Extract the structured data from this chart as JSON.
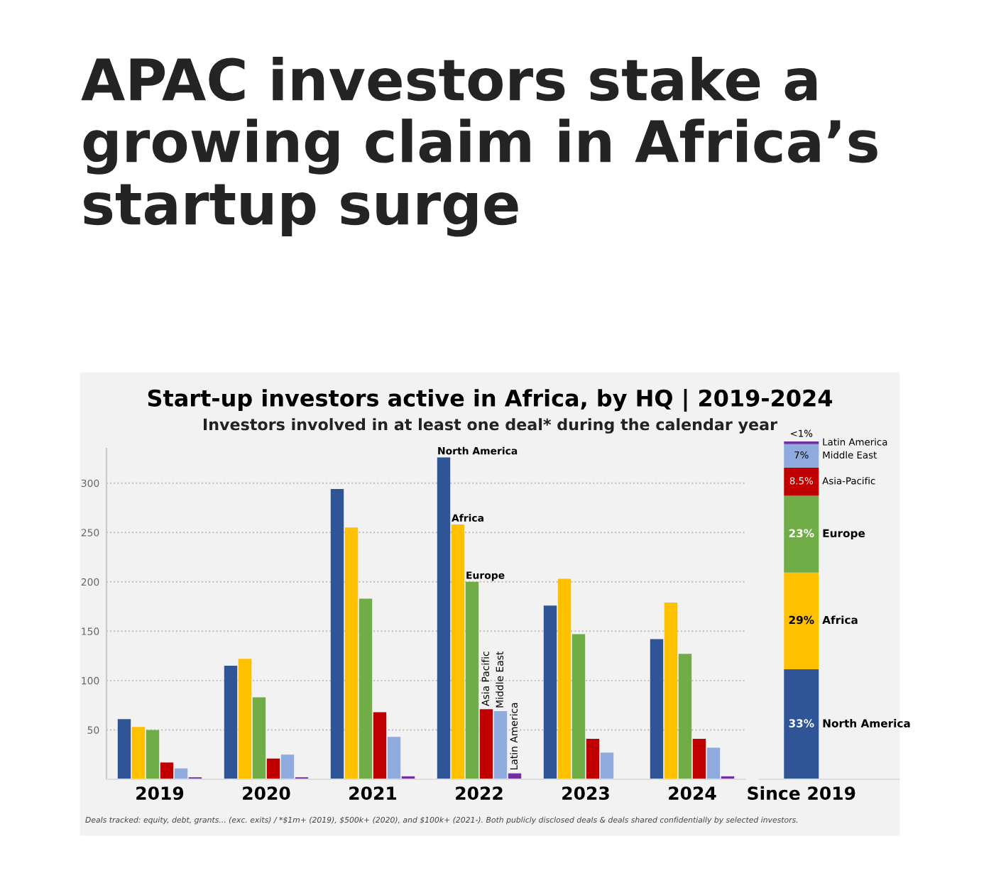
{
  "chart_data": [
    {
      "type": "bar",
      "title": "Start-up investors active in Africa, by HQ | 2019-2024",
      "subtitle": "Investors involved in at least one deal* during the calendar year",
      "annotations": [
        "APAC investors stake a\ngrowing claim in Africa’s\nstartup surge",
        "Deals tracked: equity, debt, grants... (exc. exits) / *$1m+ (2019), $500k+ (2020), and $100k+ (2021-). Both publicly disclosed deals & deals shared confidentially by selected investors."
      ],
      "categories": [
        "2019",
        "2020",
        "2021",
        "2022",
        "2023",
        "2024"
      ],
      "series": [
        {
          "name": "North America",
          "color": "#2f5597",
          "values": [
            61,
            115,
            294,
            326,
            176,
            142
          ]
        },
        {
          "name": "Africa",
          "color": "#ffc000",
          "values": [
            53,
            122,
            255,
            258,
            203,
            179
          ]
        },
        {
          "name": "Europe",
          "color": "#70ad47",
          "values": [
            50,
            83,
            183,
            200,
            147,
            127
          ]
        },
        {
          "name": "Asia Pacific",
          "color": "#c00000",
          "values": [
            17,
            21,
            68,
            71,
            41,
            41
          ]
        },
        {
          "name": "Middle East",
          "color": "#8faadc",
          "values": [
            11,
            25,
            43,
            69,
            27,
            32
          ]
        },
        {
          "name": "Latin America",
          "color": "#7030a0",
          "values": [
            2,
            2,
            3,
            6,
            0,
            3
          ]
        }
      ],
      "ylim": [
        0,
        335
      ],
      "yticks": [
        50,
        100,
        150,
        200,
        250,
        300
      ],
      "grid": "y",
      "legend": false
    },
    {
      "type": "bar",
      "stacked": true,
      "categories": [
        "Since 2019"
      ],
      "series": [
        {
          "name": "North America",
          "color": "#2f5597",
          "values": [
            33
          ],
          "value_labels": [
            "33%"
          ]
        },
        {
          "name": "Africa",
          "color": "#ffc000",
          "values": [
            29
          ],
          "value_labels": [
            "29%"
          ]
        },
        {
          "name": "Europe",
          "color": "#70ad47",
          "values": [
            23
          ],
          "value_labels": [
            "23%"
          ]
        },
        {
          "name": "Asia-Pacific",
          "color": "#c00000",
          "values": [
            8.5
          ],
          "value_labels": [
            "8.5%"
          ]
        },
        {
          "name": "Middle East",
          "color": "#8faadc",
          "values": [
            7
          ],
          "value_labels": [
            "7%"
          ]
        },
        {
          "name": "Latin America",
          "color": "#7030a0",
          "values": [
            0.8
          ],
          "value_labels": [
            "<1%"
          ]
        }
      ],
      "tick_labels": "x",
      "legend": false
    }
  ]
}
